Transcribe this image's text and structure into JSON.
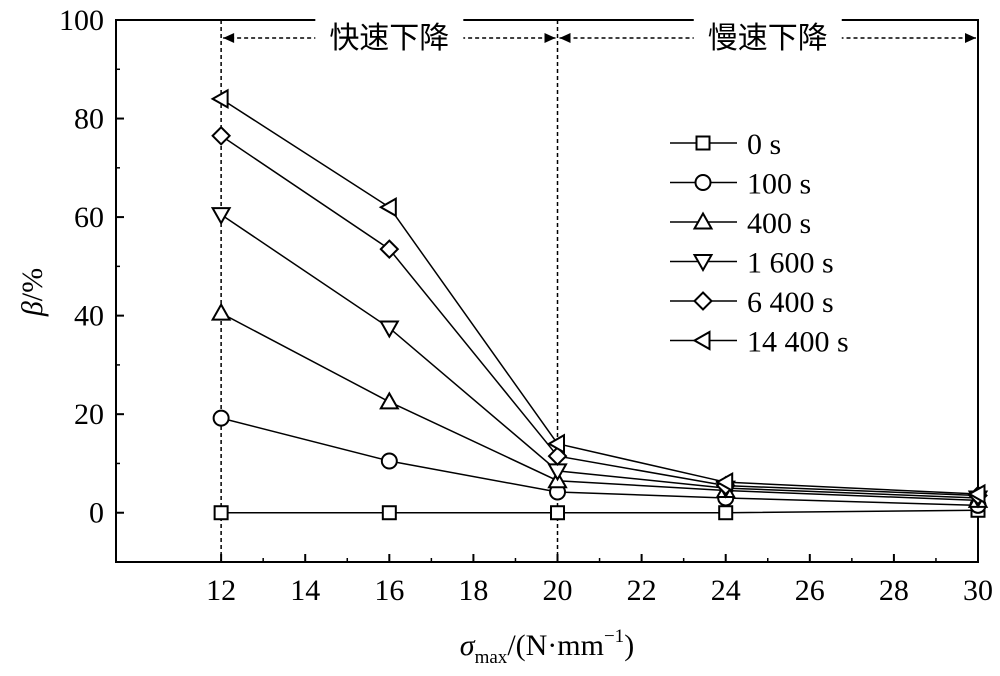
{
  "chart_data": {
    "type": "line",
    "title": "",
    "xlabel": {
      "symbol": "σ",
      "subscript": "max",
      "unit_prefix": "/(N·mm",
      "exponent": "−1",
      "unit_suffix": ")"
    },
    "ylabel": {
      "symbol": "β",
      "unit": "/%"
    },
    "xlim": [
      9.5,
      30
    ],
    "ylim": [
      -10,
      100
    ],
    "x": [
      12,
      16,
      20,
      24,
      30
    ],
    "xticks": [
      12,
      14,
      16,
      18,
      20,
      22,
      24,
      26,
      28,
      30
    ],
    "yticks": [
      0,
      20,
      40,
      60,
      80,
      100
    ],
    "grid": false,
    "legend_position": "right",
    "marker_style": "hollow",
    "line_color": "#000000",
    "region_dividers": [
      12,
      20,
      30
    ],
    "regions": [
      {
        "label": "快速下降",
        "from": 12,
        "to": 20
      },
      {
        "label": "慢速下降",
        "from": 20,
        "to": 30
      }
    ],
    "series": [
      {
        "name": "0 s",
        "marker": "square",
        "values": [
          0,
          0,
          0,
          0,
          0.5
        ]
      },
      {
        "name": "100 s",
        "marker": "circle",
        "values": [
          19.2,
          10.5,
          4.2,
          3.0,
          1.5
        ]
      },
      {
        "name": "400 s",
        "marker": "triangle-up",
        "values": [
          40.5,
          22.5,
          6.5,
          4.5,
          2.5
        ]
      },
      {
        "name": "1 600 s",
        "marker": "triangle-down",
        "values": [
          60.5,
          37.5,
          8.5,
          5.0,
          3.0
        ]
      },
      {
        "name": "6 400 s",
        "marker": "diamond",
        "values": [
          76.5,
          53.5,
          11.5,
          5.5,
          3.5
        ]
      },
      {
        "name": "14 400 s",
        "marker": "triangle-left",
        "values": [
          84.0,
          62.0,
          14.0,
          6.2,
          3.8
        ]
      }
    ]
  }
}
